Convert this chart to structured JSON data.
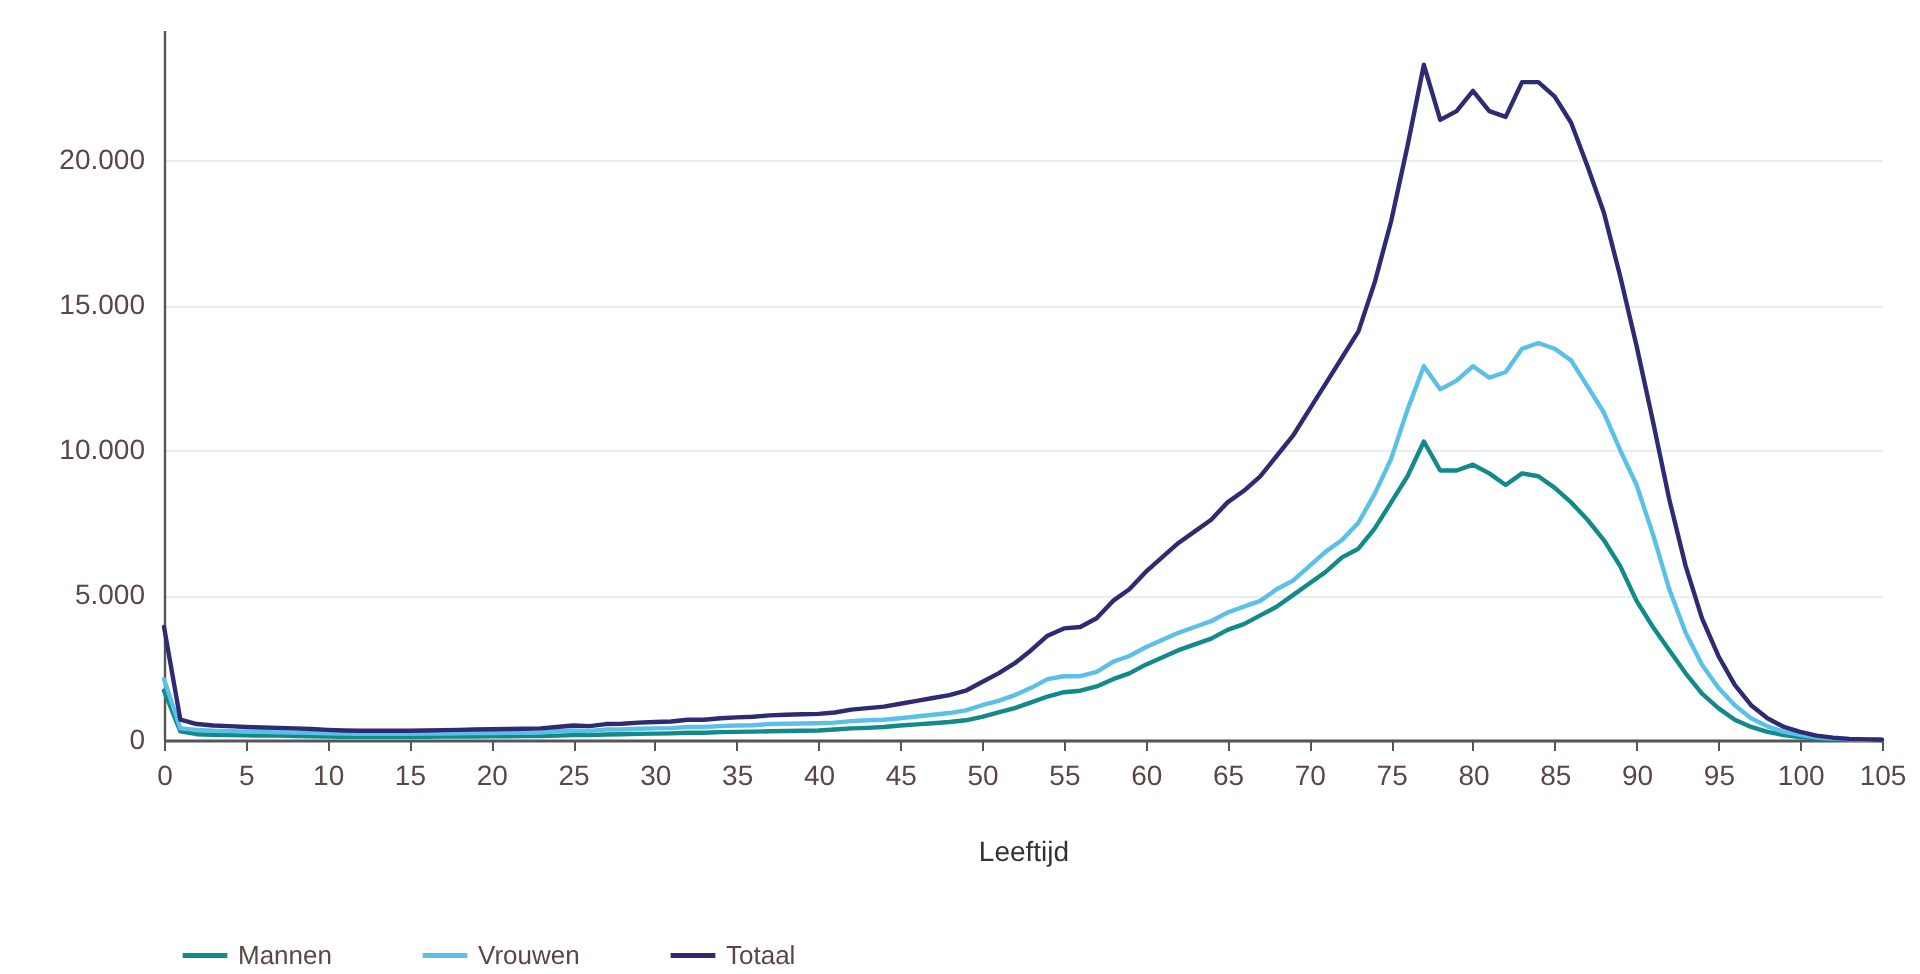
{
  "chart_data": {
    "type": "line",
    "xlabel": "Leeftijd",
    "x": [
      0,
      1,
      2,
      3,
      4,
      5,
      6,
      7,
      8,
      9,
      10,
      11,
      12,
      13,
      14,
      15,
      16,
      17,
      18,
      19,
      20,
      21,
      22,
      23,
      24,
      25,
      26,
      27,
      28,
      29,
      30,
      31,
      32,
      33,
      34,
      35,
      36,
      37,
      38,
      39,
      40,
      41,
      42,
      43,
      44,
      45,
      46,
      47,
      48,
      49,
      50,
      51,
      52,
      53,
      54,
      55,
      56,
      57,
      58,
      59,
      60,
      61,
      62,
      63,
      64,
      65,
      66,
      67,
      68,
      69,
      70,
      71,
      72,
      73,
      74,
      75,
      76,
      77,
      78,
      79,
      80,
      81,
      82,
      83,
      84,
      85,
      86,
      87,
      88,
      89,
      90,
      91,
      92,
      93,
      94,
      95,
      96,
      97,
      98,
      99,
      100,
      101,
      102,
      103,
      104,
      105
    ],
    "series": [
      {
        "name": "Mannen",
        "color": "#138a8a",
        "values": [
          1700,
          300,
          200,
          180,
          170,
          160,
          150,
          150,
          140,
          130,
          120,
          110,
          110,
          110,
          110,
          110,
          110,
          120,
          120,
          120,
          130,
          130,
          140,
          140,
          150,
          170,
          170,
          190,
          200,
          210,
          220,
          230,
          250,
          250,
          270,
          280,
          290,
          300,
          310,
          320,
          330,
          360,
          400,
          420,
          450,
          500,
          540,
          580,
          620,
          680,
          800,
          950,
          1100,
          1300,
          1500,
          1650,
          1700,
          1850,
          2100,
          2300,
          2600,
          2850,
          3100,
          3300,
          3500,
          3800,
          4000,
          4300,
          4600,
          5000,
          5400,
          5800,
          6300,
          6600,
          7300,
          8200,
          9100,
          10300,
          9300,
          9300,
          9500,
          9200,
          8800,
          9200,
          9100,
          8700,
          8200,
          7600,
          6900,
          6000,
          4800,
          3900,
          3100,
          2300,
          1600,
          1100,
          700,
          450,
          280,
          170,
          100,
          60,
          30,
          20,
          10,
          0
        ]
      },
      {
        "name": "Vrouwen",
        "color": "#5bc0e8",
        "values": [
          2100,
          400,
          350,
          320,
          310,
          290,
          280,
          270,
          260,
          250,
          230,
          220,
          210,
          210,
          210,
          210,
          220,
          220,
          230,
          240,
          240,
          250,
          250,
          260,
          300,
          330,
          310,
          360,
          360,
          390,
          400,
          410,
          450,
          450,
          480,
          500,
          510,
          550,
          560,
          570,
          580,
          600,
          650,
          680,
          700,
          750,
          810,
          870,
          930,
          1020,
          1200,
          1350,
          1550,
          1800,
          2100,
          2200,
          2200,
          2350,
          2700,
          2900,
          3200,
          3450,
          3700,
          3900,
          4100,
          4400,
          4600,
          4800,
          5200,
          5500,
          6000,
          6500,
          6900,
          7500,
          8500,
          9700,
          11400,
          12900,
          12100,
          12400,
          12900,
          12500,
          12700,
          13500,
          13700,
          13500,
          13100,
          12200,
          11300,
          10000,
          8800,
          7100,
          5200,
          3700,
          2600,
          1800,
          1200,
          750,
          470,
          280,
          180,
          90,
          50,
          30,
          10,
          10
        ]
      },
      {
        "name": "Totaal",
        "color": "#2e2b73",
        "values": [
          3900,
          700,
          550,
          500,
          480,
          450,
          430,
          420,
          400,
          380,
          350,
          330,
          320,
          320,
          320,
          320,
          330,
          340,
          350,
          360,
          370,
          380,
          390,
          400,
          450,
          500,
          480,
          550,
          560,
          600,
          620,
          640,
          700,
          700,
          750,
          780,
          800,
          850,
          870,
          890,
          900,
          950,
          1050,
          1100,
          1150,
          1250,
          1350,
          1450,
          1550,
          1700,
          2000,
          2300,
          2650,
          3100,
          3600,
          3850,
          3900,
          4200,
          4800,
          5200,
          5800,
          6300,
          6800,
          7200,
          7600,
          8200,
          8600,
          9100,
          9800,
          10500,
          11400,
          12300,
          13200,
          14100,
          15800,
          17900,
          20500,
          23300,
          21400,
          21700,
          22400,
          21700,
          21500,
          22700,
          22700,
          22200,
          21300,
          19800,
          18200,
          16000,
          13600,
          11000,
          8300,
          6000,
          4200,
          2900,
          1900,
          1200,
          750,
          450,
          280,
          150,
          80,
          40,
          20,
          10
        ]
      }
    ],
    "xlim": [
      0,
      105
    ],
    "xticks": [
      0,
      5,
      10,
      15,
      20,
      25,
      30,
      35,
      40,
      45,
      50,
      55,
      60,
      65,
      70,
      75,
      80,
      85,
      90,
      95,
      100,
      105
    ],
    "ylim": [
      0,
      24500
    ],
    "yticks": [
      0,
      {
        "value": 5000,
        "label": "5.000"
      },
      {
        "value": 10000,
        "label": "10.000"
      },
      {
        "value": 15000,
        "label": "15.000"
      },
      {
        "value": 20000,
        "label": "20.000"
      }
    ],
    "grid": "y",
    "legend": "bottom left",
    "marker": "none",
    "line_style": "solid"
  }
}
